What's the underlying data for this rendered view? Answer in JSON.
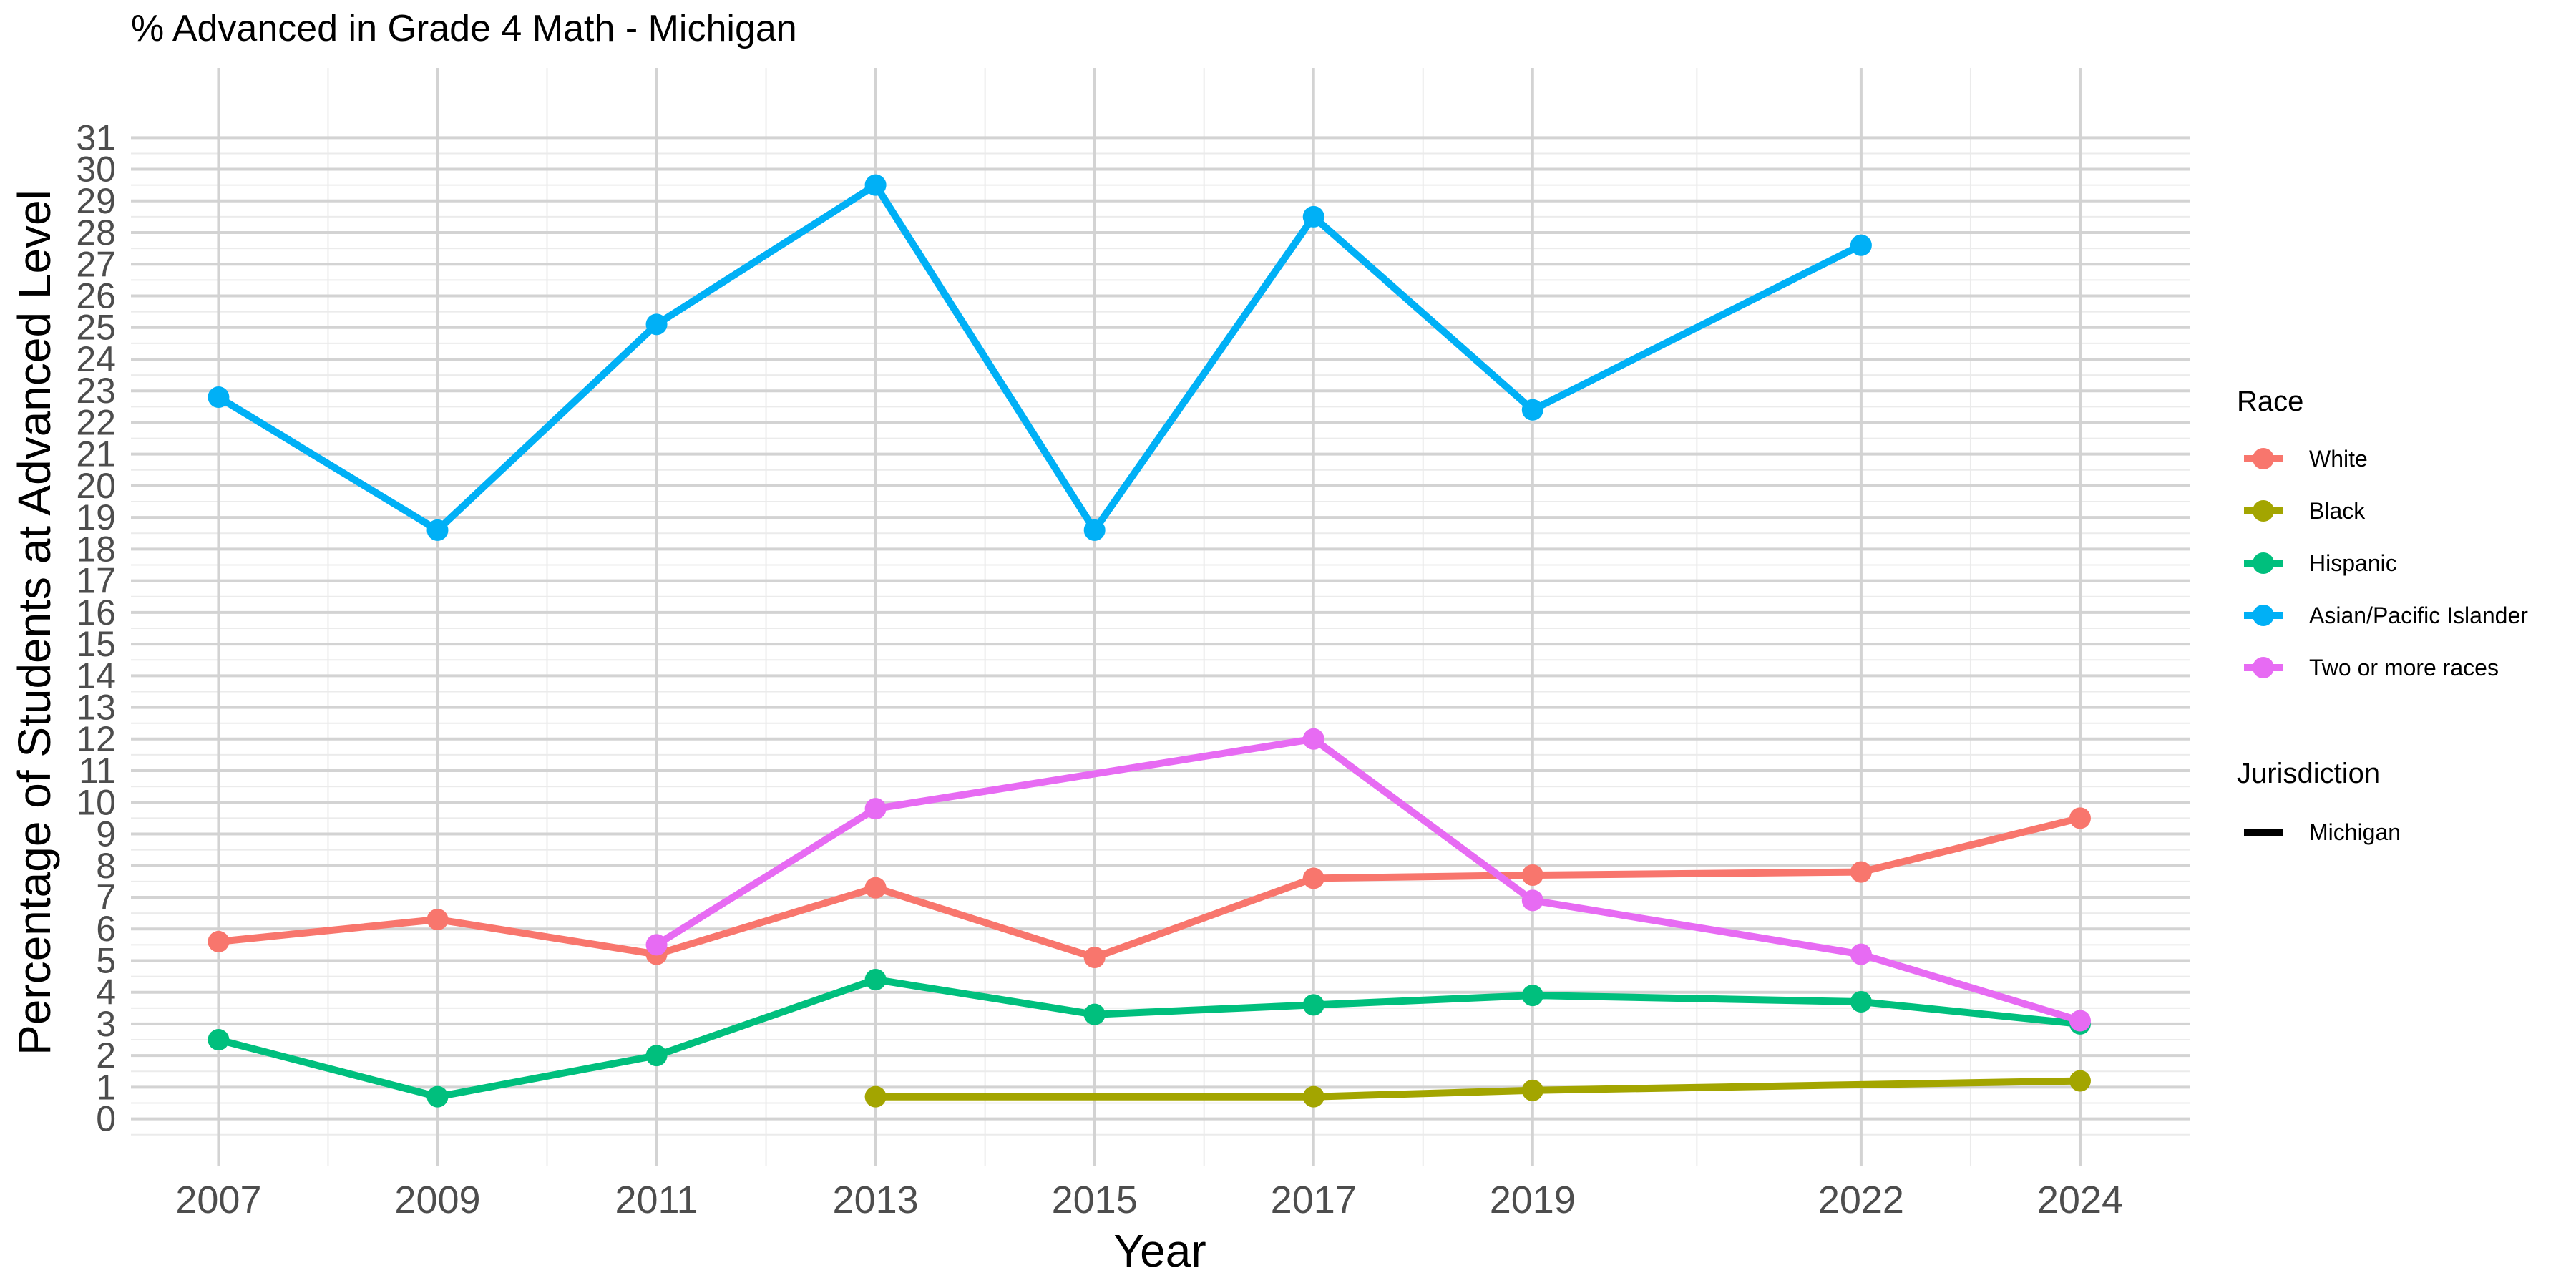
{
  "chart_data": {
    "type": "line",
    "title": "% Advanced in Grade 4 Math - Michigan",
    "xlabel": "Year",
    "ylabel": "Percentage of Students at Advanced Level",
    "x": [
      2007,
      2009,
      2011,
      2013,
      2015,
      2017,
      2019,
      2022,
      2024
    ],
    "x_tick_labels": [
      "2007",
      "2009",
      "2011",
      "2013",
      "2015",
      "2017",
      "2019",
      "2022",
      "2024"
    ],
    "y_ticks": [
      "0",
      "1",
      "2",
      "3",
      "4",
      "5",
      "6",
      "7",
      "8",
      "9",
      "10",
      "11",
      "12",
      "13",
      "14",
      "15",
      "16",
      "17",
      "18",
      "19",
      "20",
      "21",
      "22",
      "23",
      "24",
      "25",
      "26",
      "27",
      "28",
      "29",
      "30",
      "31"
    ],
    "xlim": [
      2006.2,
      2025.0
    ],
    "ylim": [
      -1.5,
      33.2
    ],
    "grid": true,
    "legend_position": "right",
    "series": [
      {
        "name": "White",
        "color": "#F8766D",
        "points": [
          [
            2007,
            5.6
          ],
          [
            2009,
            6.3
          ],
          [
            2011,
            5.2
          ],
          [
            2013,
            7.3
          ],
          [
            2015,
            5.1
          ],
          [
            2017,
            7.6
          ],
          [
            2019,
            7.7
          ],
          [
            2022,
            7.8
          ],
          [
            2024,
            9.5
          ]
        ]
      },
      {
        "name": "Black",
        "color": "#A3A500",
        "points": [
          [
            2013,
            0.7
          ],
          [
            2017,
            0.7
          ],
          [
            2019,
            0.9
          ],
          [
            2024,
            1.2
          ]
        ]
      },
      {
        "name": "Hispanic",
        "color": "#00BF7D",
        "points": [
          [
            2007,
            2.5
          ],
          [
            2009,
            0.7
          ],
          [
            2011,
            2.0
          ],
          [
            2013,
            4.4
          ],
          [
            2015,
            3.3
          ],
          [
            2017,
            3.6
          ],
          [
            2019,
            3.9
          ],
          [
            2022,
            3.7
          ],
          [
            2024,
            3.0
          ]
        ]
      },
      {
        "name": "Asian/Pacific Islander",
        "color": "#00B0F6",
        "points": [
          [
            2007,
            22.8
          ],
          [
            2009,
            18.6
          ],
          [
            2011,
            25.1
          ],
          [
            2013,
            29.5
          ],
          [
            2015,
            18.6
          ],
          [
            2017,
            28.5
          ],
          [
            2019,
            22.4
          ],
          [
            2022,
            27.6
          ]
        ]
      },
      {
        "name": "Two or more races",
        "color": "#E76BF3",
        "points": [
          [
            2011,
            5.5
          ],
          [
            2013,
            9.8
          ],
          [
            2017,
            12.0
          ],
          [
            2019,
            6.9
          ],
          [
            2022,
            5.2
          ],
          [
            2024,
            3.1
          ]
        ]
      }
    ],
    "legend": {
      "color_title": "Race",
      "linetype_title": "Jurisdiction",
      "linetype_entries": [
        {
          "name": "Michigan",
          "color": "#000000"
        }
      ]
    }
  }
}
